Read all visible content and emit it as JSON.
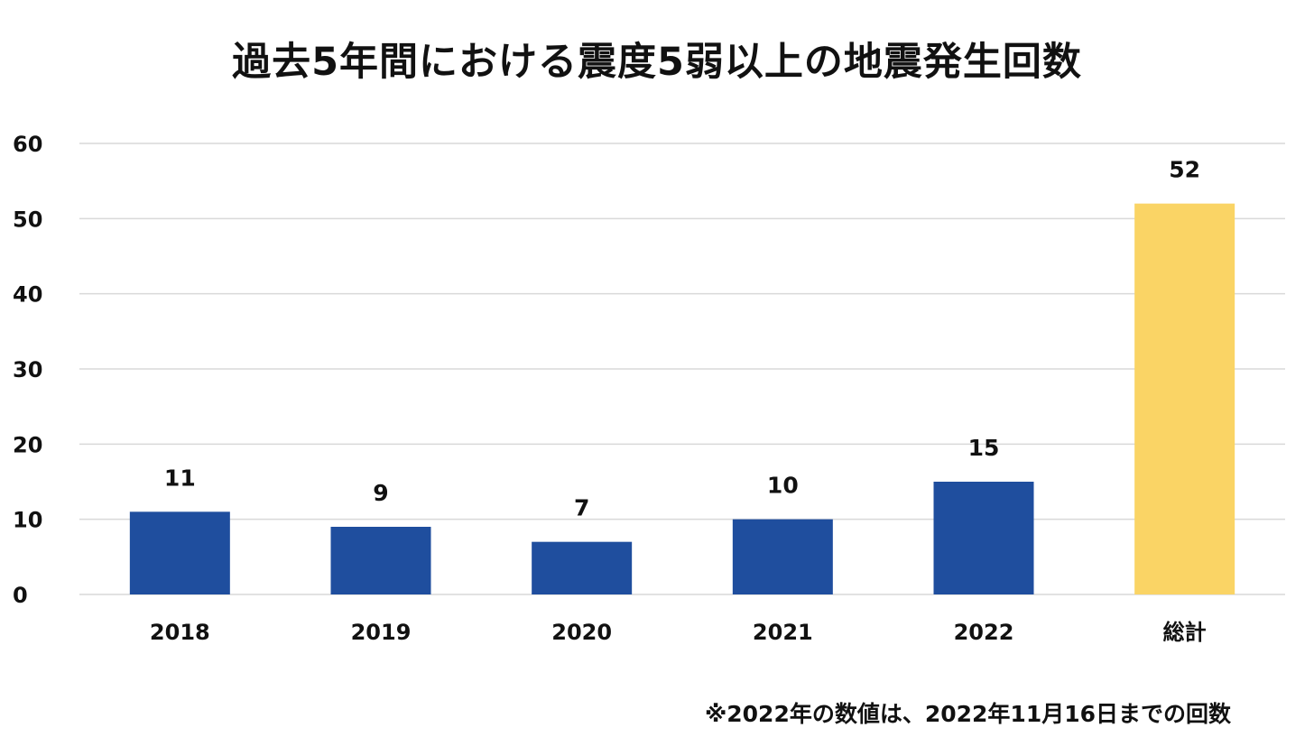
{
  "chart_data": {
    "type": "bar",
    "title": "過去5年間における震度5弱以上の地震発生回数",
    "categories": [
      "2018",
      "2019",
      "2020",
      "2021",
      "2022",
      "総計"
    ],
    "values": [
      11,
      9,
      7,
      10,
      15,
      52
    ],
    "data_labels": [
      "11",
      "9",
      "7",
      "10",
      "15",
      "52"
    ],
    "y_ticks": [
      0,
      10,
      20,
      30,
      40,
      50,
      60
    ],
    "ylim": [
      0,
      60
    ],
    "grid": true,
    "legend": "none",
    "colors": {
      "bar": "#1f4e9e",
      "total_bar": "#fad465",
      "grid": "#d9d9d9"
    },
    "footnote": "※2022年の数値は、2022年11月16日までの回数"
  }
}
